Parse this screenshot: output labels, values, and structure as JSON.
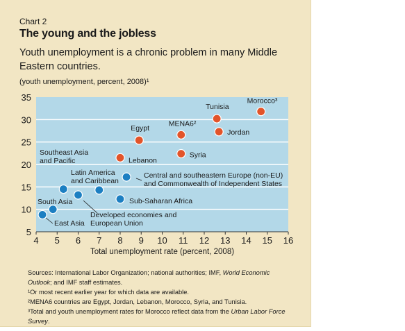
{
  "header": {
    "chart_number": "Chart 2",
    "title": "The young and the jobless",
    "subtitle": "Youth unemployment is a chronic problem in many Middle Eastern countries.",
    "unit": "(youth unemployment, percent, 2008)¹"
  },
  "notes": {
    "source_plain": "Sources: International Labor Organization; national authorities; IMF, ",
    "source_italic": "World Economic",
    "source_italic2": "Outlook",
    "source_rest": "; and IMF staff estimates.",
    "note1": "¹Or most recent earlier year for which data are available.",
    "note2": "²MENA6 countries are Egypt, Jordan, Lebanon, Morocco, Syria, and Tunisia.",
    "note3_plain": "³Total and youth unemployment rates for Morocco reflect data from the ",
    "note3_italic": "Urban Labor Force",
    "note3_italic2": "Survey",
    "note3_end": "."
  },
  "colors": {
    "panel": "#f2e6c4",
    "plot_bg": "#b3d8e8",
    "grid": "#ffffff",
    "mena": "#e2542a",
    "other": "#1c7fc2",
    "dot_stroke": "#ffffff"
  },
  "chart_data": {
    "type": "scatter",
    "xlabel": "Total unemployment rate (percent, 2008)",
    "ylabel": "",
    "xlim": [
      4,
      16
    ],
    "ylim": [
      5,
      35
    ],
    "xticks": [
      4,
      5,
      6,
      7,
      8,
      9,
      10,
      11,
      12,
      13,
      14,
      15,
      16
    ],
    "yticks": [
      5,
      10,
      15,
      20,
      25,
      30,
      35
    ],
    "grid": true,
    "series": [
      {
        "group": "mena",
        "points": [
          {
            "label": "Morocco³",
            "x": 14.7,
            "y": 31.8
          },
          {
            "label": "Tunisia",
            "x": 12.6,
            "y": 30.2
          },
          {
            "label": "Jordan",
            "x": 12.7,
            "y": 27.3
          },
          {
            "label": "MENA6²",
            "x": 10.9,
            "y": 26.6
          },
          {
            "label": "Egypt",
            "x": 8.9,
            "y": 25.4
          },
          {
            "label": "Syria",
            "x": 10.9,
            "y": 22.4
          },
          {
            "label": "Lebanon",
            "x": 8.0,
            "y": 21.5
          }
        ]
      },
      {
        "group": "other",
        "points": [
          {
            "label": "Central and southeastern Europe (non-EU) and Commonwealth of Independent States",
            "x": 8.3,
            "y": 17.2
          },
          {
            "label": "Southeast Asia and Pacific",
            "x": 5.3,
            "y": 14.5
          },
          {
            "label": "Latin America and Caribbean",
            "x": 7.0,
            "y": 14.3
          },
          {
            "label": "Developed economies and European Union",
            "x": 6.0,
            "y": 13.2
          },
          {
            "label": "Sub-Saharan Africa",
            "x": 8.0,
            "y": 12.3
          },
          {
            "label": "South Asia",
            "x": 4.8,
            "y": 10.0
          },
          {
            "label": "East Asia",
            "x": 4.3,
            "y": 8.8
          }
        ]
      }
    ]
  }
}
